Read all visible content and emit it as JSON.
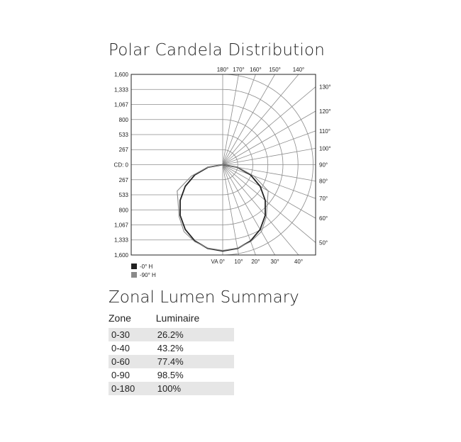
{
  "title": "Polar Candela Distribution",
  "chart_data": {
    "type": "polar",
    "title": "Polar Candela Distribution",
    "radial_axis_label_prefix": "CD: ",
    "radial_ticks": [
      "1,600",
      "1,333",
      "1,067",
      "800",
      "533",
      "267",
      "CD: 0",
      "267",
      "533",
      "800",
      "1,067",
      "1,333",
      "1,600"
    ],
    "radial_tick_values": [
      267,
      533,
      800,
      1067,
      1333,
      1600
    ],
    "rmax": 1600,
    "angle_labels": {
      "bottom": [
        "VA 0°",
        "10°",
        "20°",
        "30°",
        "40°"
      ],
      "right": [
        "50°",
        "60°",
        "70°",
        "80°",
        "90°",
        "100°",
        "110°",
        "120°",
        "130°"
      ],
      "top": [
        "140°",
        "150°",
        "160°",
        "170°",
        "180°"
      ]
    },
    "angles_deg": [
      0,
      10,
      20,
      30,
      40,
      50,
      60,
      70,
      80,
      90
    ],
    "series": [
      {
        "name": "-0° H",
        "color": "#222222",
        "values": [
          1530,
          1507,
          1438,
          1325,
          1172,
          983,
          765,
          523,
          266,
          0
        ]
      },
      {
        "name": "-90° H",
        "color": "#8a8a8a",
        "values": [
          1520,
          1500,
          1450,
          1370,
          1200,
          1030,
          930,
          590,
          280,
          0
        ]
      }
    ],
    "legend": "bottom-left",
    "grid": true
  },
  "zonal": {
    "title": "Zonal Lumen Summary",
    "headers": [
      "Zone",
      "Luminaire"
    ],
    "rows": [
      [
        "0-30",
        "26.2%"
      ],
      [
        "0-40",
        "43.2%"
      ],
      [
        "0-60",
        "77.4%"
      ],
      [
        "0-90",
        "98.5%"
      ],
      [
        "0-180",
        "100%"
      ]
    ]
  }
}
